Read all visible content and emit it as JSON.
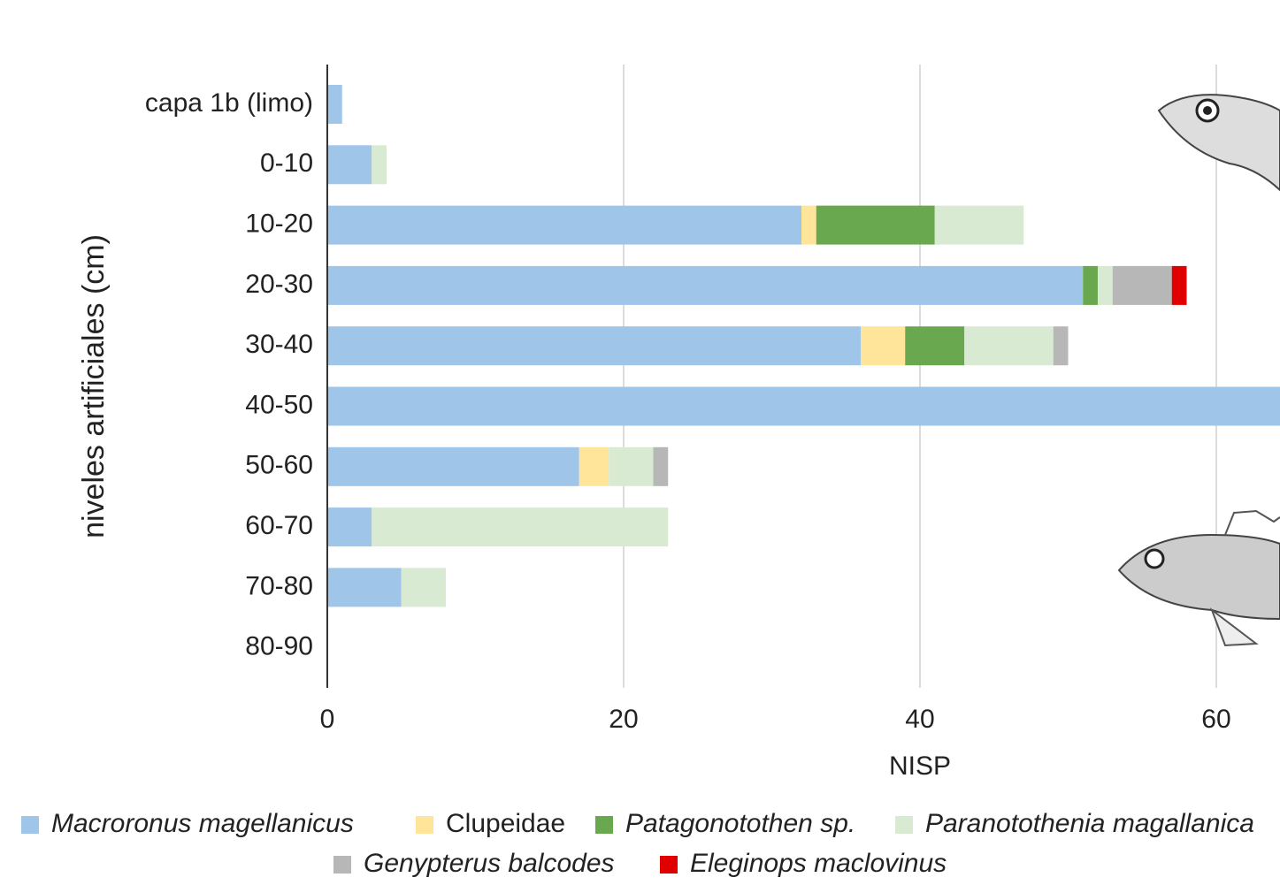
{
  "chart_data": {
    "type": "bar",
    "orientation": "horizontal",
    "stacked": true,
    "x_label": "NISP",
    "y_label": "niveles artificiales (cm)",
    "categories": [
      "capa 1b (limo)",
      "0-10",
      "10-20",
      "20-30",
      "30-40",
      "40-50",
      "50-60",
      "60-70",
      "70-80",
      "80-90"
    ],
    "series": [
      {
        "name": "Macroronus magellanicus",
        "color": "#9fc5e8",
        "values": [
          1,
          3,
          32,
          51,
          36,
          70,
          17,
          3,
          5,
          0
        ]
      },
      {
        "name": "Clupeidae",
        "color": "#ffe599",
        "values": [
          0,
          0,
          1,
          0,
          3,
          0,
          2,
          0,
          0,
          0
        ]
      },
      {
        "name": "Patagonotothen sp.",
        "color": "#6aa84f",
        "values": [
          0,
          0,
          8,
          1,
          4,
          0,
          0,
          0,
          0,
          0
        ]
      },
      {
        "name": "Paranotothenia magallanica",
        "color": "#d9ead3",
        "values": [
          0,
          1,
          6,
          1,
          6,
          0,
          3,
          20,
          3,
          0
        ]
      },
      {
        "name": "Genypterus balcodes",
        "color": "#b7b7b7",
        "values": [
          0,
          0,
          0,
          4,
          1,
          0,
          1,
          0,
          0,
          0
        ]
      },
      {
        "name": "Eleginops maclovinus",
        "color": "#e00000",
        "values": [
          0,
          0,
          0,
          1,
          0,
          0,
          0,
          0,
          0,
          0
        ]
      }
    ],
    "xlim": [
      0,
      64.3
    ],
    "xticks": [
      0,
      20,
      40,
      60
    ],
    "grid": true,
    "legend": "bottom"
  }
}
